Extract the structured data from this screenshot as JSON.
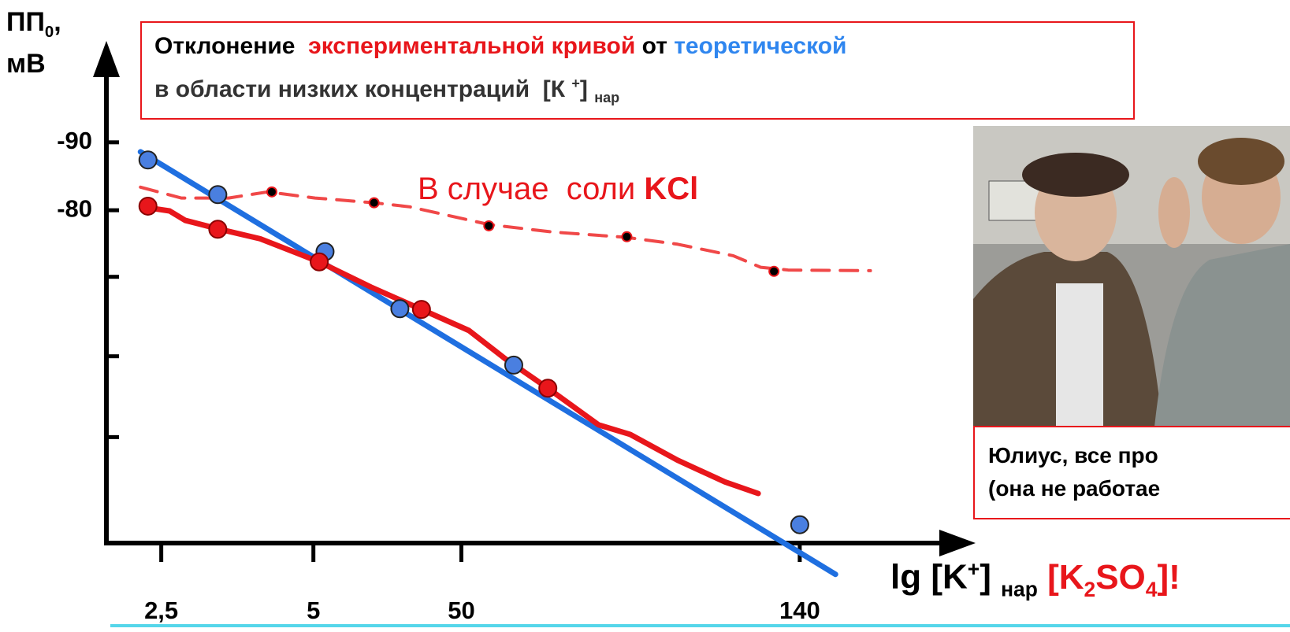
{
  "chart_data": {
    "type": "line",
    "title": [
      "Отклонение",
      "экспериментальной кривой",
      "от",
      "теоретической"
    ],
    "subtitle": [
      "в области низких концентраций  [К ",
      "+",
      "] ",
      "нар"
    ],
    "y_label": [
      "ПП",
      "0",
      ",",
      "мВ"
    ],
    "x_label": [
      "lg [K",
      "+",
      "] ",
      "нар",
      "[K",
      "2",
      "SO",
      "4",
      "]!"
    ],
    "annotation": [
      "В случае  соли ",
      "KCl"
    ],
    "xlim": [
      0,
      100
    ],
    "xticks": [
      {
        "value": 6.6,
        "label": "2,5"
      },
      {
        "value": 24.9,
        "label": "5"
      },
      {
        "value": 42.7,
        "label": "50"
      },
      {
        "value": 83.4,
        "label": "140"
      }
    ],
    "ylim": [
      -31,
      -104
    ],
    "yticks": [
      -90,
      -80
    ],
    "minor_yticks": [
      -70.2,
      -58.5,
      -46.6
    ],
    "series": [
      {
        "style": "line",
        "color": "#1f6fe0",
        "x": [
          4.1,
          87.7
        ],
        "values": [
          -88.6,
          -26.4
        ]
      },
      {
        "style": "line",
        "color": "#e8161b",
        "x": [
          4.3,
          7.6,
          9.5,
          13.3,
          18.5,
          25.6,
          31.8,
          37.9,
          43.6,
          47.9,
          53.1,
          59.2,
          63.0,
          68.7,
          74.4,
          78.4
        ],
        "values": [
          -80.5,
          -79.9,
          -78.5,
          -77.3,
          -75.8,
          -72.4,
          -68.7,
          -65.4,
          -62.3,
          -58.2,
          -53.8,
          -48.4,
          -47.0,
          -43.2,
          -40.0,
          -38.3
        ]
      },
      {
        "style": "dashed",
        "color": "#f04848",
        "x": [
          4.1,
          9.0,
          14.7,
          19.4,
          25.1,
          32.2,
          36.5,
          46.0,
          53.6,
          62.6,
          68.7,
          75.4,
          78.7,
          82.0,
          91.9
        ],
        "values": [
          -83.4,
          -81.8,
          -81.8,
          -82.7,
          -81.8,
          -81.1,
          -80.5,
          -77.9,
          -76.8,
          -76.0,
          -75.0,
          -73.3,
          -71.6,
          -71.2,
          -71.1
        ]
      },
      {
        "style": "points",
        "color": "#4a7fe0",
        "edge_color": "#222222",
        "size": 11,
        "x": [
          5.0,
          13.4,
          26.3,
          35.3,
          49.0,
          83.4
        ],
        "values": [
          -87.4,
          -82.3,
          -73.9,
          -65.5,
          -57.2,
          -33.7
        ]
      },
      {
        "style": "points",
        "color": "#e8161b",
        "edge_color": "#8a0000",
        "size": 11,
        "x": [
          5.0,
          13.4,
          25.6,
          37.9,
          53.1
        ],
        "values": [
          -80.6,
          -77.2,
          -72.4,
          -65.4,
          -53.8
        ]
      },
      {
        "style": "points",
        "color": "#000000",
        "edge_color": "#e8161b",
        "size": 6,
        "x": [
          19.9,
          32.2,
          46.0,
          62.6,
          80.3
        ],
        "values": [
          -82.7,
          -81.1,
          -77.7,
          -76.1,
          -71.0
        ]
      }
    ]
  },
  "photo": {
    "caption": [
      "Юлиус, все про",
      "(она не работае"
    ]
  }
}
